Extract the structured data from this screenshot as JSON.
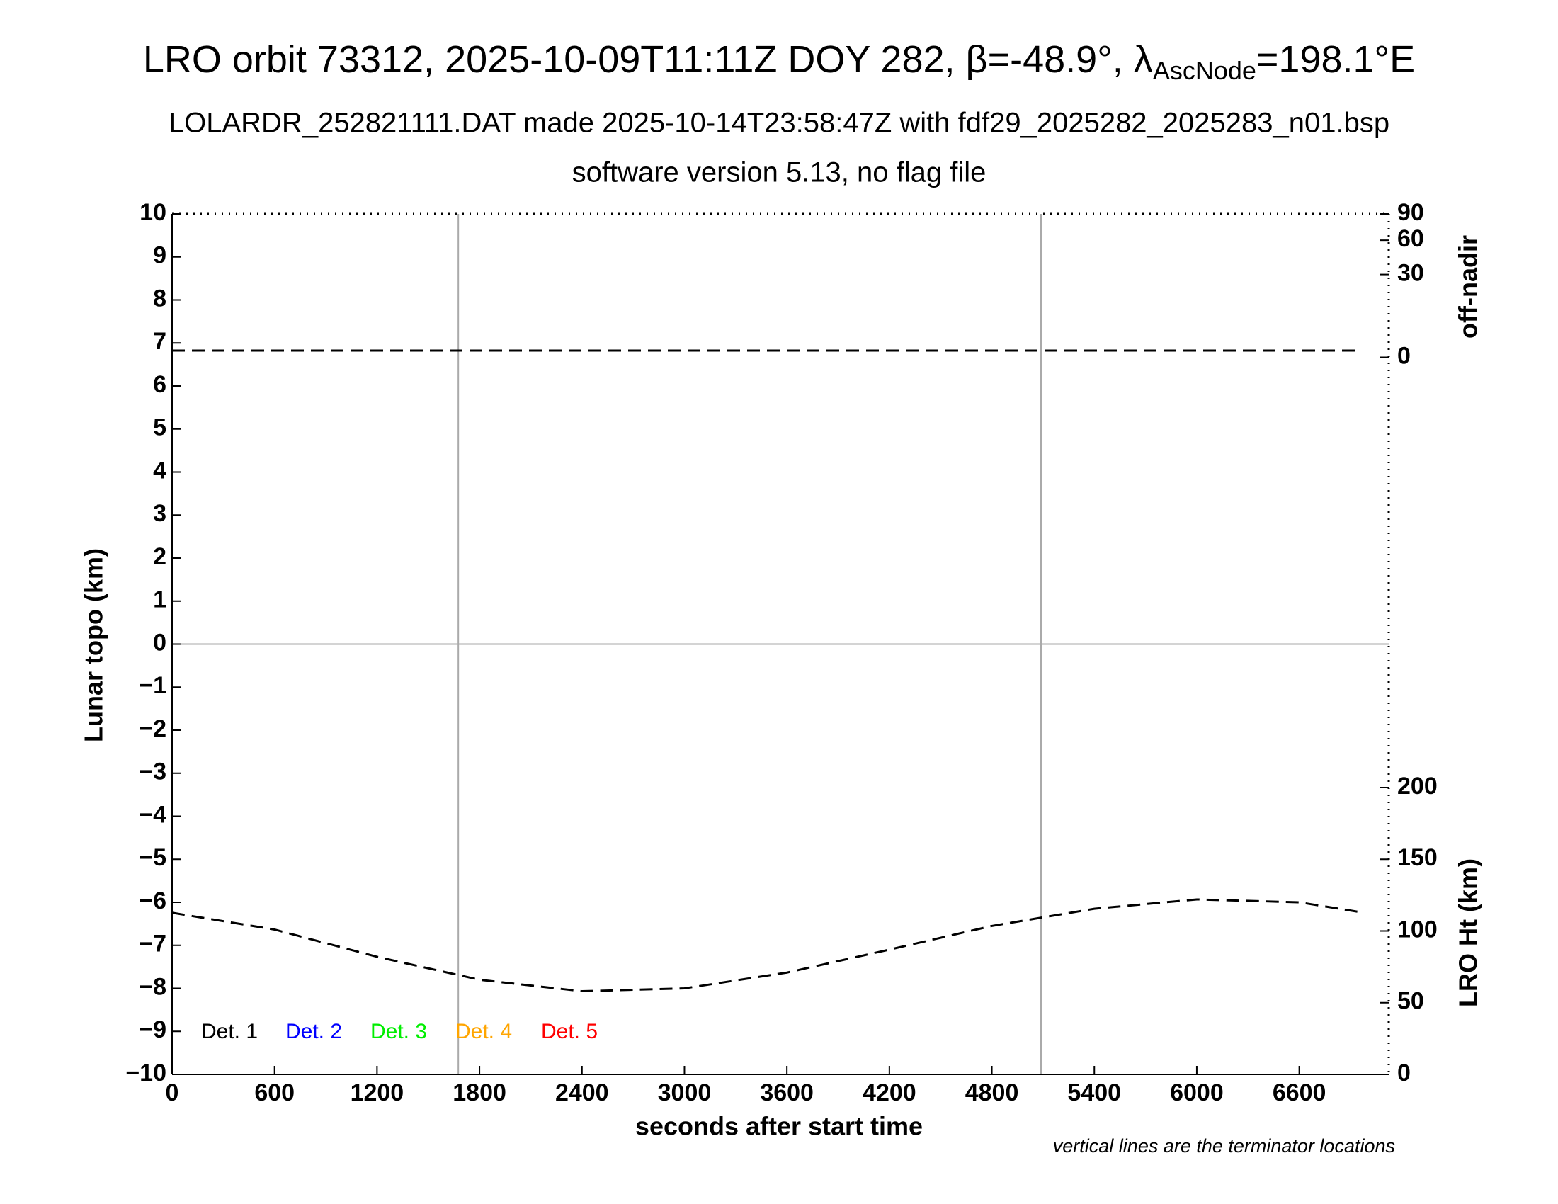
{
  "chart_data": {
    "type": "line",
    "title": {
      "main": "LRO orbit 73312, 2025-10-09T11:11Z DOY 282, β=-48.9°, λ",
      "sub": "AscNode",
      "end": "=198.1°E"
    },
    "subtitles": [
      "LOLARDR_252821111.DAT made 2025-10-14T23:58:47Z with fdf29_2025282_2025283_n01.bsp",
      "software version 5.13, no flag file"
    ],
    "xlabel": "seconds after start time",
    "ylabel": "Lunar topo (km)",
    "y2label": "LRO Ht (km)",
    "y3label": "off-nadir",
    "note": "vertical lines are the terminator locations",
    "xlim": [
      0,
      7124
    ],
    "xticks": [
      0,
      600,
      1200,
      1800,
      2400,
      3000,
      3600,
      4200,
      4800,
      5400,
      6000,
      6600
    ],
    "ylim": [
      -10,
      10
    ],
    "yticks": [
      {
        "value": -10,
        "label": "−10"
      },
      {
        "value": -9,
        "label": "−9"
      },
      {
        "value": -8,
        "label": "−8"
      },
      {
        "value": -7,
        "label": "−7"
      },
      {
        "value": -6,
        "label": "−6"
      },
      {
        "value": -5,
        "label": "−5"
      },
      {
        "value": -4,
        "label": "−4"
      },
      {
        "value": -3,
        "label": "−3"
      },
      {
        "value": -2,
        "label": "−2"
      },
      {
        "value": -1,
        "label": "−1"
      },
      0,
      1,
      2,
      3,
      4,
      5,
      6,
      7,
      8,
      9,
      10
    ],
    "y2lim": [
      0,
      600
    ],
    "y2ticks": [
      0,
      50,
      100,
      150,
      200
    ],
    "y3lim": [
      0,
      90
    ],
    "y3scale": "sqrt",
    "y3ticks": [
      0,
      30,
      60,
      90
    ],
    "zero_line": 0,
    "terminators": [
      1676,
      5088
    ],
    "legend": [
      {
        "name": "Det. 1",
        "color": "#000000"
      },
      {
        "name": "Det. 2",
        "color": "#0000ff"
      },
      {
        "name": "Det. 3",
        "color": "#00ee00"
      },
      {
        "name": "Det. 4",
        "color": "#ffa500"
      },
      {
        "name": "Det. 5",
        "color": "#ff0000"
      }
    ],
    "series": [
      {
        "axis": "y3",
        "color": "#000000",
        "x": [
          0,
          6965
        ],
        "values": [
          0.2,
          0.2
        ]
      },
      {
        "axis": "y2",
        "color": "#000000",
        "x": [
          0,
          600,
          1200,
          1800,
          2400,
          3000,
          3600,
          4200,
          4800,
          5400,
          6000,
          6600,
          6965
        ],
        "values": [
          112.7,
          101,
          82,
          66,
          58,
          60,
          71,
          87,
          103.5,
          115.5,
          122,
          120,
          113
        ]
      }
    ]
  }
}
